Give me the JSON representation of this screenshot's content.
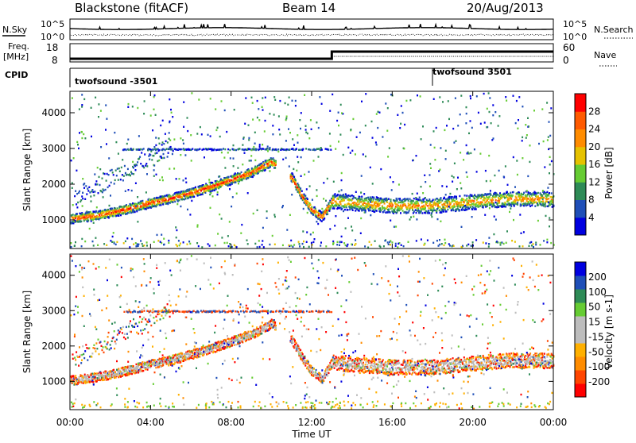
{
  "header": {
    "station": "Blackstone (fitACF)",
    "beam": "Beam 14",
    "date": "20/Aug/2013"
  },
  "noise_panel": {
    "left_label": "N.Sky",
    "left_ticks": [
      "10^5",
      "10^0"
    ],
    "right_label": "N.Search",
    "right_ticks": [
      "10^5",
      "10^0"
    ]
  },
  "freq_panel": {
    "left_label_line1": "Freq.",
    "left_label_line2": "[MHz]",
    "left_ticks": [
      "18",
      "8"
    ],
    "right_label": "Nave",
    "right_ticks": [
      "60",
      "0"
    ]
  },
  "cpid_panel": {
    "label": "CPID",
    "segments": [
      {
        "name": "twofsound -3501",
        "start_hour": 0
      },
      {
        "name": "twofsound 3501",
        "start_hour": 18
      }
    ]
  },
  "colors": {
    "power_scale": [
      "#0000e0",
      "#1f4fb8",
      "#2e8b57",
      "#66cc33",
      "#e6c200",
      "#ff8c00",
      "#ff5a00",
      "#ff0000"
    ],
    "velocity_scale": [
      "#ff0000",
      "#ff4500",
      "#ff8c00",
      "#ffb000",
      "#bdbdbd",
      "#bdbdbd",
      "#66cc33",
      "#2e8b57",
      "#1f4fb8",
      "#0000e0"
    ],
    "ground_scatter": "#b8b8b8"
  },
  "chart_data": [
    {
      "type": "heatmap",
      "panel": "power",
      "xlabel": "",
      "ylabel": "Slant Range [km]",
      "xlim": [
        0,
        24
      ],
      "ylim": [
        200,
        4600
      ],
      "yticks": [
        "4000",
        "3000",
        "2000",
        "1000"
      ],
      "colorbar": {
        "label": "Power [dB]",
        "ticks": [
          "28",
          "24",
          "20",
          "16",
          "12",
          "8",
          "4"
        ],
        "range": [
          0,
          32
        ]
      },
      "main_band": {
        "hours": [
          0,
          1,
          2,
          3,
          4,
          5,
          6,
          7,
          8,
          9,
          9.5,
          10,
          11,
          11.5,
          12,
          12.5,
          13,
          14,
          16,
          18,
          20,
          22,
          24
        ],
        "range_km": [
          1050,
          1120,
          1220,
          1350,
          1500,
          1620,
          1780,
          1950,
          2150,
          2350,
          2500,
          2650,
          2200,
          1700,
          1300,
          1100,
          1550,
          1500,
          1420,
          1420,
          1530,
          1620,
          1600
        ]
      },
      "line_feature_range_km": 3000
    },
    {
      "type": "heatmap",
      "panel": "velocity",
      "xlabel": "Time UT",
      "ylabel": "Slant Range [km]",
      "xlim": [
        0,
        24
      ],
      "ylim": [
        200,
        4600
      ],
      "xticks": [
        "00:00",
        "04:00",
        "08:00",
        "12:00",
        "16:00",
        "20:00",
        "00:00"
      ],
      "yticks": [
        "4000",
        "3000",
        "2000",
        "1000"
      ],
      "colorbar": {
        "label": "Velocity [m s-1]",
        "ticks": [
          "200",
          "100",
          "50",
          "15",
          "-15",
          "-50",
          "-100",
          "-200"
        ],
        "range": [
          -250,
          250
        ]
      }
    }
  ]
}
